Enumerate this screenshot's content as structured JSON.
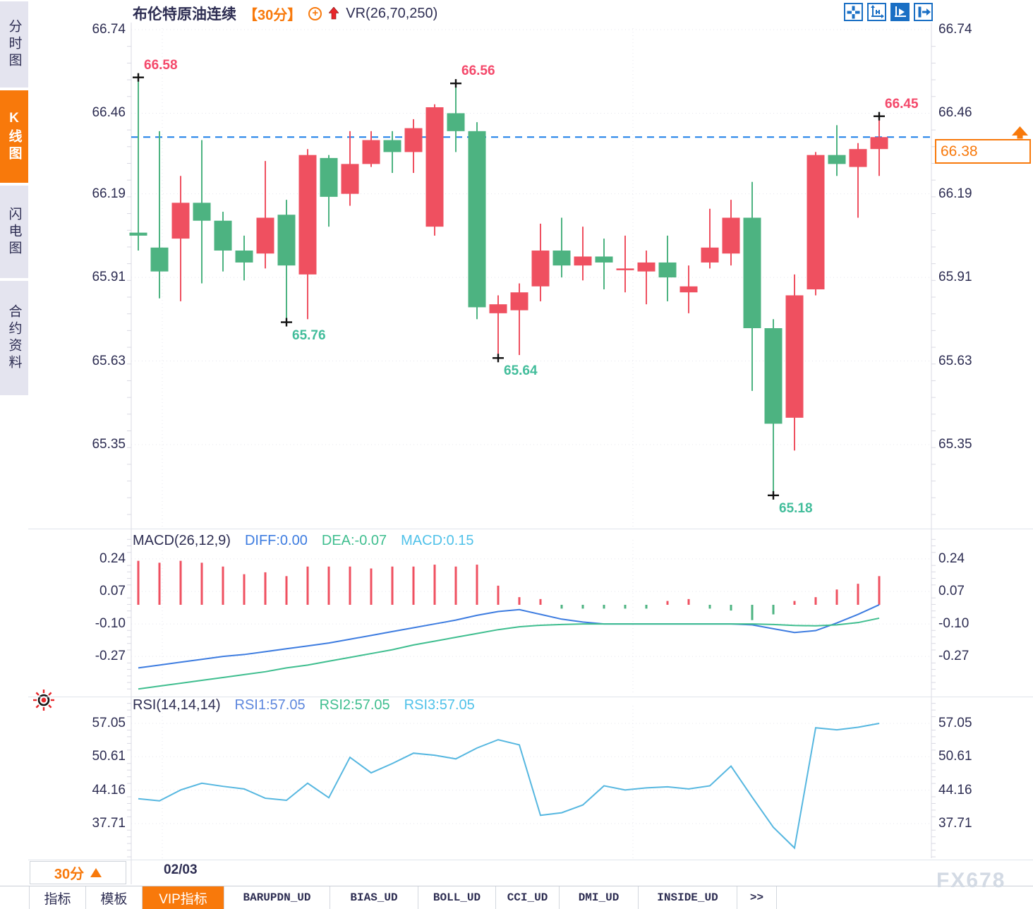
{
  "header": {
    "symbol": "布伦特原油连续",
    "period": "【30分】",
    "indicator": "VR(26,70,250)"
  },
  "sidebar": {
    "tabs": [
      {
        "label": "分时图",
        "active": false
      },
      {
        "label": "K线图",
        "active": true
      },
      {
        "label": "闪电图",
        "active": false
      },
      {
        "label": "合约资料",
        "active": false
      }
    ]
  },
  "toolbar": {
    "icons": [
      {
        "name": "move-icon",
        "active": false
      },
      {
        "name": "axis-zoom-icon",
        "active": false
      },
      {
        "name": "axis-play-icon",
        "active": true
      },
      {
        "name": "pan-right-icon",
        "active": false
      }
    ]
  },
  "chart_data": [
    {
      "type": "candlestick",
      "symbol": "布伦特原油连续",
      "interval": "30分",
      "y_ticks": [
        "66.74",
        "66.46",
        "66.19",
        "65.91",
        "65.63",
        "65.35"
      ],
      "ohlc": [
        [
          66.06,
          66.58,
          66.0,
          66.05
        ],
        [
          66.01,
          66.4,
          65.84,
          65.93
        ],
        [
          66.04,
          66.25,
          65.83,
          66.16
        ],
        [
          66.16,
          66.37,
          65.89,
          66.1
        ],
        [
          66.1,
          66.13,
          65.93,
          66.0
        ],
        [
          66.0,
          66.05,
          65.9,
          65.96
        ],
        [
          65.99,
          66.3,
          65.94,
          66.11
        ],
        [
          66.12,
          66.17,
          65.76,
          65.95
        ],
        [
          65.92,
          66.34,
          65.77,
          66.32
        ],
        [
          66.31,
          66.32,
          66.08,
          66.18
        ],
        [
          66.19,
          66.4,
          66.15,
          66.29
        ],
        [
          66.29,
          66.4,
          66.28,
          66.37
        ],
        [
          66.37,
          66.4,
          66.26,
          66.33
        ],
        [
          66.33,
          66.44,
          66.26,
          66.41
        ],
        [
          66.08,
          66.49,
          66.05,
          66.48
        ],
        [
          66.46,
          66.56,
          66.33,
          66.4
        ],
        [
          66.4,
          66.43,
          65.77,
          65.81
        ],
        [
          65.79,
          65.85,
          65.64,
          65.82
        ],
        [
          65.8,
          65.89,
          65.65,
          65.86
        ],
        [
          65.88,
          66.09,
          65.83,
          66.0
        ],
        [
          66.0,
          66.11,
          65.91,
          65.95
        ],
        [
          65.95,
          66.08,
          65.9,
          65.98
        ],
        [
          65.98,
          66.04,
          65.87,
          65.96
        ],
        [
          65.94,
          66.05,
          65.86,
          65.94
        ],
        [
          65.93,
          66.0,
          65.82,
          65.96
        ],
        [
          65.96,
          66.05,
          65.83,
          65.91
        ],
        [
          65.86,
          65.95,
          65.79,
          65.88
        ],
        [
          65.96,
          66.14,
          65.94,
          66.01
        ],
        [
          65.99,
          66.17,
          65.95,
          66.11
        ],
        [
          66.11,
          66.23,
          65.53,
          65.74
        ],
        [
          65.74,
          65.77,
          65.18,
          65.42
        ],
        [
          65.44,
          65.92,
          65.33,
          65.85
        ],
        [
          65.87,
          66.33,
          65.85,
          66.32
        ],
        [
          66.32,
          66.42,
          66.25,
          66.29
        ],
        [
          66.28,
          66.36,
          66.11,
          66.34
        ],
        [
          66.34,
          66.45,
          66.25,
          66.38
        ]
      ],
      "markers": [
        {
          "index": 0,
          "price": 66.58,
          "label": "66.58",
          "kind": "high"
        },
        {
          "index": 7,
          "price": 65.76,
          "label": "65.76",
          "kind": "low"
        },
        {
          "index": 15,
          "price": 66.56,
          "label": "66.56",
          "kind": "high"
        },
        {
          "index": 17,
          "price": 65.64,
          "label": "65.64",
          "kind": "low"
        },
        {
          "index": 30,
          "price": 65.18,
          "label": "65.18",
          "kind": "low"
        },
        {
          "index": 35,
          "price": 66.45,
          "label": "66.45",
          "kind": "high"
        }
      ],
      "current_price": {
        "label": "66.38",
        "value": 66.38
      },
      "reference_line": 66.38
    },
    {
      "type": "bar",
      "name": "MACD",
      "title": "MACD(26,12,9)",
      "legend": [
        {
          "label": "DIFF:0.00",
          "color": "#3d7ce0"
        },
        {
          "label": "DEA:-0.07",
          "color": "#3fbe8f"
        },
        {
          "label": "MACD:0.15",
          "color": "#4fc1e9"
        }
      ],
      "y_ticks": [
        "0.24",
        "0.07",
        "-0.10",
        "-0.27"
      ],
      "histogram": [
        0.23,
        0.22,
        0.23,
        0.22,
        0.2,
        0.16,
        0.17,
        0.15,
        0.2,
        0.2,
        0.2,
        0.19,
        0.2,
        0.2,
        0.21,
        0.2,
        0.21,
        0.1,
        0.04,
        0.03,
        -0.02,
        -0.02,
        -0.02,
        -0.02,
        -0.02,
        0.02,
        0.03,
        -0.02,
        -0.03,
        -0.08,
        -0.05,
        0.02,
        0.04,
        0.08,
        0.11,
        0.15
      ],
      "series": [
        {
          "name": "DIFF",
          "color": "#3d7ce0",
          "values": [
            -0.33,
            -0.315,
            -0.3,
            -0.285,
            -0.27,
            -0.26,
            -0.245,
            -0.23,
            -0.215,
            -0.2,
            -0.18,
            -0.16,
            -0.14,
            -0.12,
            -0.1,
            -0.08,
            -0.055,
            -0.035,
            -0.025,
            -0.05,
            -0.075,
            -0.09,
            -0.1,
            -0.1,
            -0.1,
            -0.1,
            -0.1,
            -0.1,
            -0.1,
            -0.105,
            -0.125,
            -0.145,
            -0.135,
            -0.095,
            -0.05,
            0.0
          ]
        },
        {
          "name": "DEA",
          "color": "#3fbe8f",
          "values": [
            -0.44,
            -0.425,
            -0.41,
            -0.395,
            -0.38,
            -0.365,
            -0.35,
            -0.33,
            -0.315,
            -0.295,
            -0.275,
            -0.255,
            -0.235,
            -0.21,
            -0.19,
            -0.17,
            -0.15,
            -0.13,
            -0.115,
            -0.107,
            -0.103,
            -0.1,
            -0.1,
            -0.1,
            -0.1,
            -0.1,
            -0.1,
            -0.1,
            -0.1,
            -0.1,
            -0.103,
            -0.108,
            -0.11,
            -0.105,
            -0.093,
            -0.07
          ]
        }
      ]
    },
    {
      "type": "line",
      "name": "RSI",
      "title": "RSI(14,14,14)",
      "legend": [
        {
          "label": "RSI1:57.05",
          "color": "#5d87dd"
        },
        {
          "label": "RSI2:57.05",
          "color": "#3fbe8f"
        },
        {
          "label": "RSI3:57.05",
          "color": "#4fc1e9"
        }
      ],
      "y_ticks": [
        "57.05",
        "50.61",
        "44.16",
        "37.71"
      ],
      "values": [
        42.5,
        42.1,
        44.2,
        45.5,
        44.9,
        44.4,
        42.6,
        42.2,
        45.5,
        42.7,
        50.5,
        47.5,
        49.3,
        51.3,
        50.9,
        50.2,
        52.3,
        53.9,
        52.9,
        39.3,
        39.8,
        41.3,
        45.0,
        44.2,
        44.6,
        44.8,
        44.4,
        45.0,
        48.8,
        42.8,
        37.0,
        33.0,
        56.2,
        55.8,
        56.3,
        57.05
      ]
    }
  ],
  "time_axis": {
    "period": "30分",
    "date": "02/03"
  },
  "bottom_tabs": [
    {
      "label": "指标",
      "active": false,
      "mono": false
    },
    {
      "label": "模板",
      "active": false,
      "mono": false
    },
    {
      "label": "VIP指标",
      "active": true,
      "mono": false
    },
    {
      "label": "BARUPDN_UD",
      "active": false,
      "mono": true
    },
    {
      "label": "BIAS_UD",
      "active": false,
      "mono": true
    },
    {
      "label": "BOLL_UD",
      "active": false,
      "mono": true
    },
    {
      "label": "CCI_UD",
      "active": false,
      "mono": true
    },
    {
      "label": "DMI_UD",
      "active": false,
      "mono": true
    },
    {
      "label": "INSIDE_UD",
      "active": false,
      "mono": true
    },
    {
      "label": ">>",
      "active": false,
      "mono": true
    }
  ],
  "watermark": "FX678",
  "colors": {
    "up": "#ef5060",
    "down": "#4db381",
    "accent": "#f8790b",
    "navy": "#2d2d52",
    "ref_line": "#1b7ee8",
    "rsi_line": "#56b7e0",
    "high_label": "#f4486a",
    "low_label": "#42bd9b",
    "grid": "#e5e5ed",
    "axis": "#d9d9e3"
  }
}
